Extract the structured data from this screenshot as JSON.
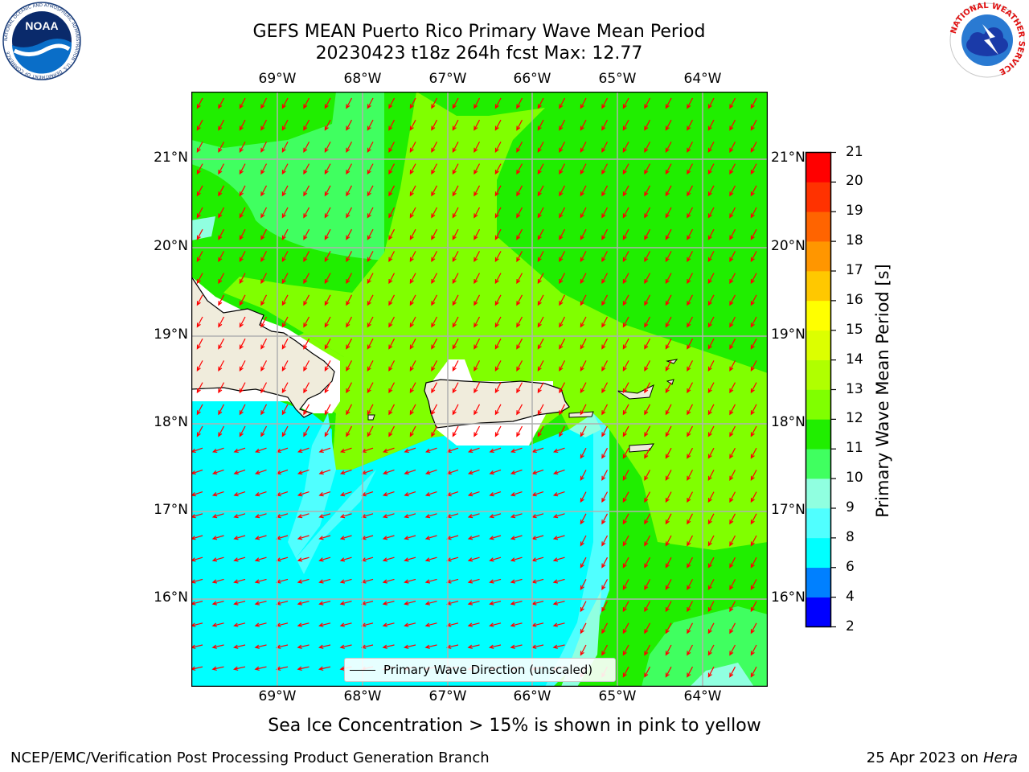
{
  "title": {
    "line1": "GEFS MEAN Puerto Rico Primary Wave Mean Period",
    "line2": "20230423 t18z 264h fcst   Max: 12.77"
  },
  "logos": {
    "noaa_text": "NOAA",
    "noaa_ring": "NATIONAL OCEANIC AND ATMOSPHERIC ADMINISTRATION · U.S. DEPARTMENT OF COMMERCE",
    "nws_ring": "NATIONAL WEATHER SERVICE"
  },
  "map": {
    "lon_labels": [
      "69°W",
      "68°W",
      "67°W",
      "66°W",
      "65°W",
      "64°W"
    ],
    "lat_labels": [
      "21°N",
      "20°N",
      "19°N",
      "18°N",
      "17°N",
      "16°N"
    ],
    "legend_label": "Primary Wave Direction (unscaled)",
    "colors": {
      "land": "#f0ecdc",
      "arrow": "#ff0000",
      "coast": "#000000",
      "grid": "#b0b0b0"
    }
  },
  "colorbar": {
    "label": "Primary Wave Mean Period [s]",
    "ticks": [
      "2",
      "4",
      "6",
      "8",
      "9",
      "10",
      "11",
      "12",
      "13",
      "14",
      "15",
      "16",
      "17",
      "18",
      "19",
      "20",
      "21"
    ],
    "colors": [
      "#0000ff",
      "#0080ff",
      "#00ffff",
      "#50ffff",
      "#90ffe0",
      "#40ff60",
      "#20ee00",
      "#80ff00",
      "#b0ff00",
      "#dcff00",
      "#ffff00",
      "#ffc800",
      "#ff9600",
      "#ff6400",
      "#ff3200",
      "#ff0000"
    ]
  },
  "note": "Sea Ice Concentration > 15% is shown in pink to yellow",
  "footer": {
    "left": "NCEP/EMC/Verification Post Processing Product Generation Branch",
    "right_date": "25 Apr 2023 on",
    "right_host": "Hera"
  }
}
